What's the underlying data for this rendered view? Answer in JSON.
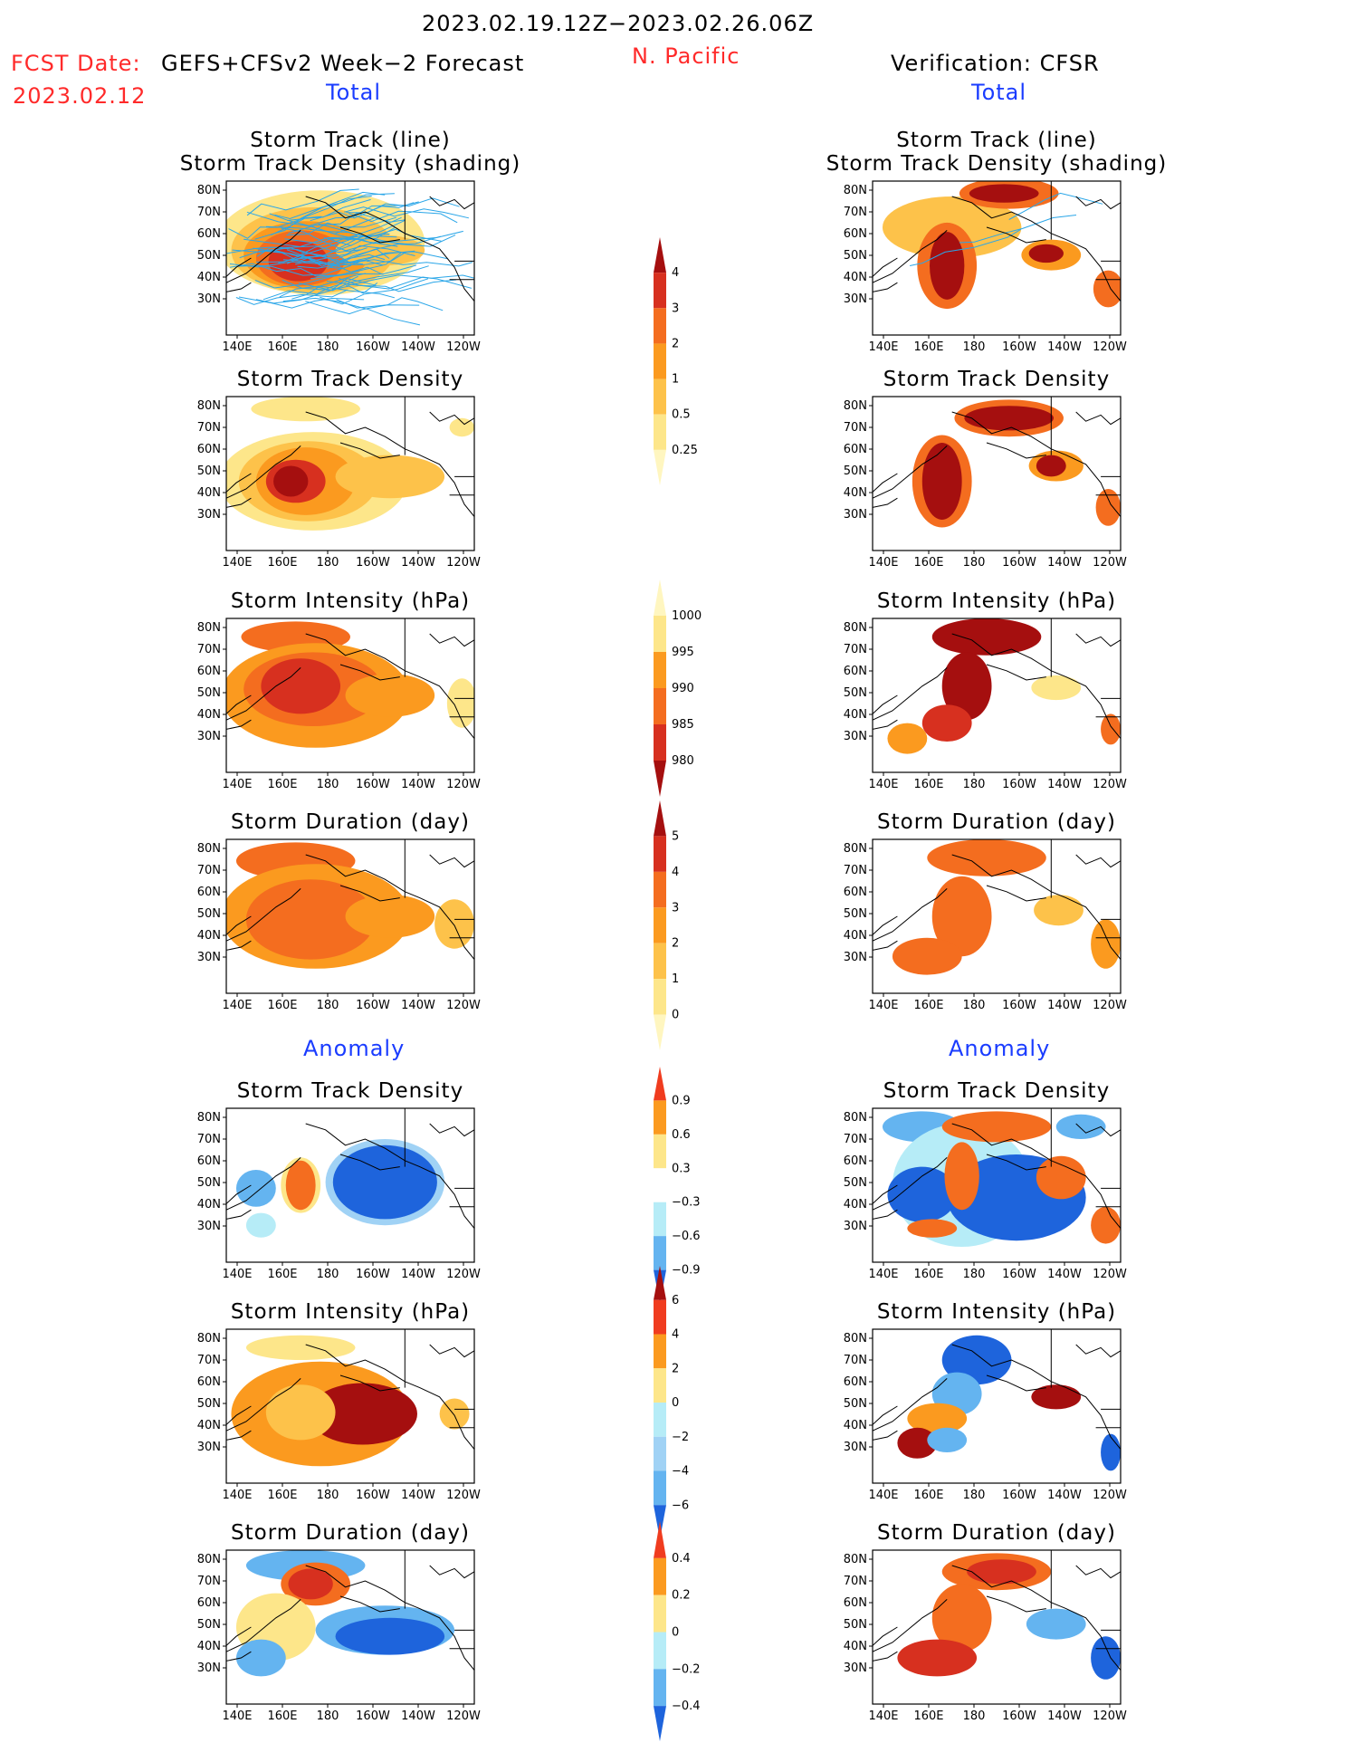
{
  "header": {
    "date_range": "2023.02.19.12Z−2023.02.26.06Z",
    "region": "N. Pacific",
    "fcst_label": "FCST Date:",
    "fcst_model": "GEFS+CFSv2 Week−2 Forecast",
    "fcst_date": "2023.02.12",
    "verification": "Verification: CFSR",
    "left_total": "Total",
    "right_total": "Total",
    "left_anomaly": "Anomaly",
    "right_anomaly": "Anomaly"
  },
  "axes": {
    "lat_ticks": [
      "80N",
      "70N",
      "60N",
      "50N",
      "40N",
      "30N"
    ],
    "lon_ticks": [
      "140E",
      "160E",
      "180",
      "160W",
      "140W",
      "120W"
    ]
  },
  "panels": {
    "left": [
      {
        "title1": "Storm Track (line)",
        "title2": "Storm Track Density (shading)"
      },
      {
        "title1": "Storm Track Density"
      },
      {
        "title1": "Storm Intensity (hPa)"
      },
      {
        "title1": "Storm Duration (day)"
      },
      {
        "title1": "Storm Track Density"
      },
      {
        "title1": "Storm Intensity (hPa)"
      },
      {
        "title1": "Storm Duration (day)"
      }
    ],
    "right": [
      {
        "title1": "Storm Track (line)",
        "title2": "Storm Track Density (shading)"
      },
      {
        "title1": "Storm Track Density"
      },
      {
        "title1": "Storm Intensity (hPa)"
      },
      {
        "title1": "Storm Duration (day)"
      },
      {
        "title1": "Storm Track Density"
      },
      {
        "title1": "Storm Intensity (hPa)"
      },
      {
        "title1": "Storm Duration (day)"
      }
    ]
  },
  "colorbars": [
    {
      "name": "density",
      "labels": [
        "4",
        "3",
        "2",
        "1",
        "0.5",
        "0.25"
      ],
      "colors": [
        "#a50f0f",
        "#d7301f",
        "#f46d1f",
        "#fb9a1f",
        "#fdc24a",
        "#fde68a",
        "#fff6c0"
      ]
    },
    {
      "name": "intensity",
      "labels": [
        "1000",
        "995",
        "990",
        "985",
        "980"
      ],
      "colors": [
        "#fff6c0",
        "#fde68a",
        "#fb9a1f",
        "#f46d1f",
        "#d7301f",
        "#a50f0f"
      ]
    },
    {
      "name": "duration",
      "labels": [
        "5",
        "4",
        "3",
        "2",
        "1",
        "0"
      ],
      "colors": [
        "#a50f0f",
        "#d7301f",
        "#f46d1f",
        "#fb9a1f",
        "#fdc24a",
        "#fde68a",
        "#fff6c0"
      ]
    },
    {
      "name": "density-anom",
      "labels": [
        "0.9",
        "0.6",
        "0.3",
        "−0.3",
        "−0.6",
        "−0.9"
      ],
      "colors": [
        "#f03c1f",
        "#fb9a1f",
        "#fde68a",
        "#ffffff",
        "#b6ecf7",
        "#64b4f0",
        "#1e64dc"
      ]
    },
    {
      "name": "intensity-anom",
      "labels": [
        "6",
        "4",
        "2",
        "0",
        "−2",
        "−4",
        "−6"
      ],
      "colors": [
        "#a50f0f",
        "#f03c1f",
        "#fb9a1f",
        "#fde68a",
        "#b6ecf7",
        "#a0d2f5",
        "#64b4f0",
        "#1e64dc"
      ]
    },
    {
      "name": "duration-anom",
      "labels": [
        "0.4",
        "0.2",
        "0",
        "−0.2",
        "−0.4"
      ],
      "colors": [
        "#f03c1f",
        "#fb9a1f",
        "#fde68a",
        "#b6ecf7",
        "#64b4f0",
        "#1e64dc"
      ]
    }
  ]
}
